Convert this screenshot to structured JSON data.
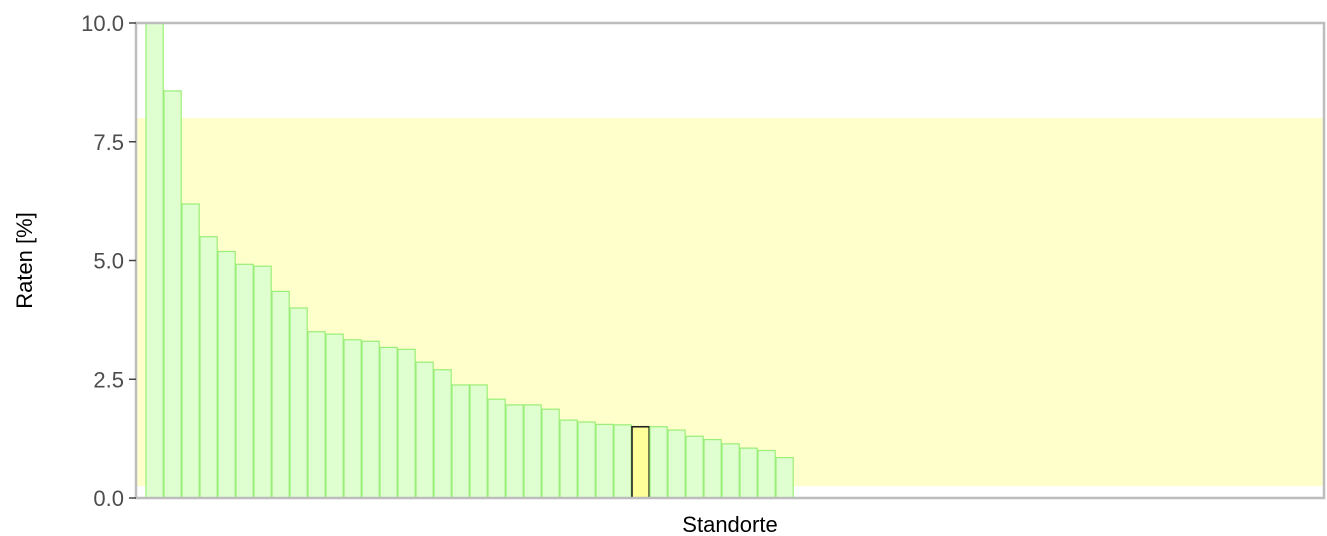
{
  "chart_data": {
    "type": "bar",
    "title": "",
    "xlabel": "Standorte",
    "ylabel": "Raten [%]",
    "ylim": [
      0,
      10
    ],
    "yticks": [
      "0.0",
      "2.5",
      "5.0",
      "7.5",
      "10.0"
    ],
    "ytick_values": [
      0,
      2.5,
      5,
      7.5,
      10
    ],
    "x_tick_labels": false,
    "grid": false,
    "legend": "none",
    "reference_band": {
      "from": 0.25,
      "to": 8.0,
      "color": "#ffffcc"
    },
    "values": [
      10.0,
      8.57,
      6.19,
      5.5,
      5.19,
      4.92,
      4.88,
      4.35,
      4.0,
      3.5,
      3.45,
      3.33,
      3.3,
      3.17,
      3.13,
      2.86,
      2.7,
      2.38,
      2.38,
      2.08,
      1.96,
      1.96,
      1.87,
      1.64,
      1.6,
      1.55,
      1.54,
      1.5,
      1.5,
      1.43,
      1.3,
      1.23,
      1.14,
      1.05,
      1.0,
      0.85
    ],
    "highlight_index": 27,
    "colors": {
      "bar_fill": "#e0ffd0",
      "bar_stroke": "#99ee77",
      "highlight_fill": "#ffff99",
      "highlight_stroke": "#222222",
      "axis": "#bdbdbd"
    }
  }
}
